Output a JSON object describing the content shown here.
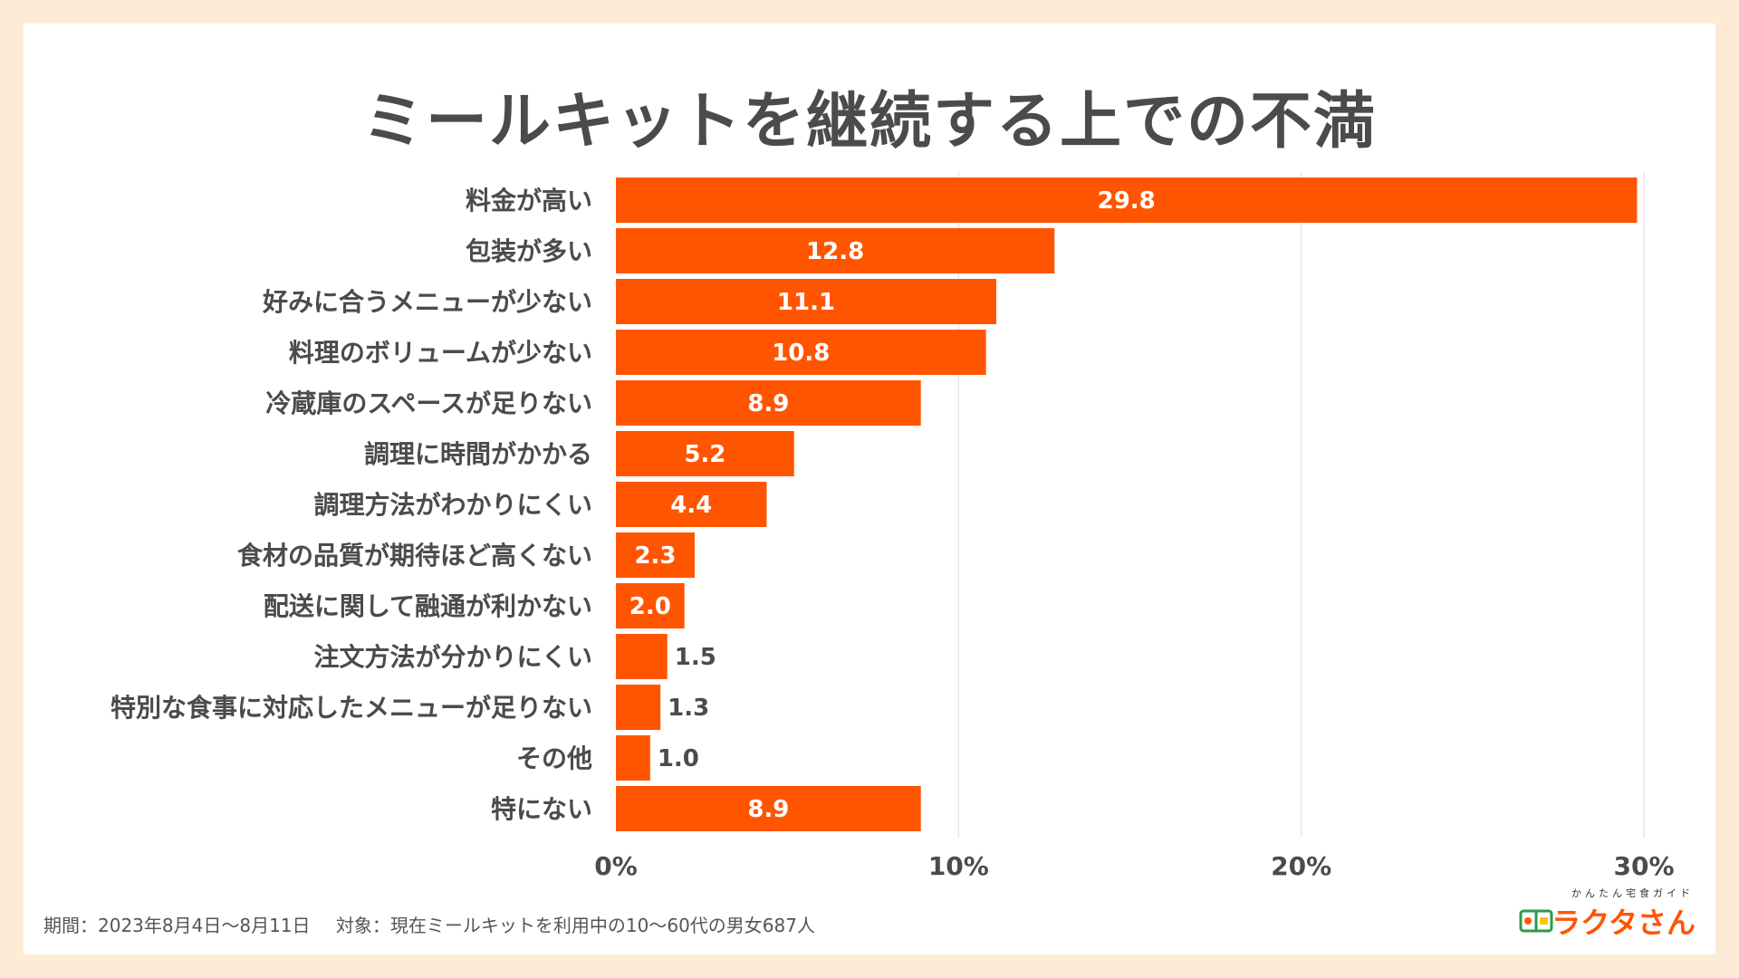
{
  "chart_data": {
    "type": "bar",
    "orientation": "horizontal",
    "title": "ミールキットを継続する上での不満",
    "categories": [
      "料金が高い",
      "包装が多い",
      "好みに合うメニューが少ない",
      "料理のボリュームが少ない",
      "冷蔵庫のスペースが足りない",
      "調理に時間がかかる",
      "調理方法がわかりにくい",
      "食材の品質が期待ほど高くない",
      "配送に関して融通が利かない",
      "注文方法が分かりにくい",
      "特別な食事に対応したメニューが足りない",
      "その他",
      "特にない"
    ],
    "values": [
      29.8,
      12.8,
      11.1,
      10.8,
      8.9,
      5.2,
      4.4,
      2.3,
      2.0,
      1.5,
      1.3,
      1.0,
      8.9
    ],
    "value_labels": [
      "29.8",
      "12.8",
      "11.1",
      "10.8",
      "8.9",
      "5.2",
      "4.4",
      "2.3",
      "2.0",
      "1.5",
      "1.3",
      "1.0",
      "8.9"
    ],
    "xlim": [
      0,
      30
    ],
    "xticks": [
      0,
      10,
      20,
      30
    ],
    "xtick_labels": [
      "0%",
      "10%",
      "20%",
      "30%"
    ],
    "xlabel": "",
    "ylabel": "",
    "grid": true,
    "bar_color": "#ff5500",
    "grid_color": "#e6e6e6",
    "label_color": "#4b4b4b"
  },
  "footer": {
    "period": "期間：2023年8月4日〜8月11日",
    "target": "対象：現在ミールキットを利用中の10〜60代の男女687人"
  },
  "logo": {
    "tagline": "かんたん宅食ガイド",
    "name": "ラクタさん",
    "icon": "lunchbox-icon"
  }
}
